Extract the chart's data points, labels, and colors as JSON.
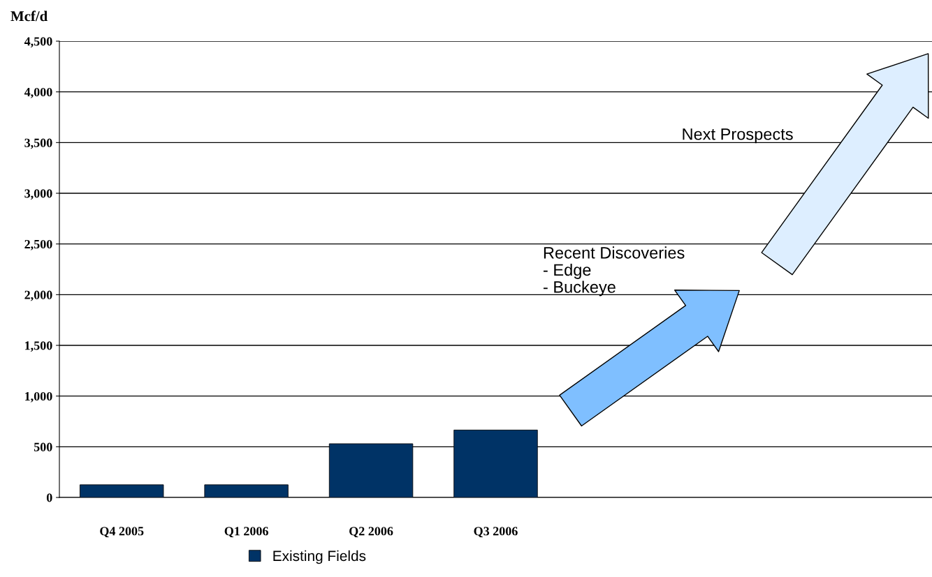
{
  "chart_data": {
    "type": "bar",
    "ylabel": "Mcf/d",
    "categories": [
      "Q4 2005",
      "Q1 2006",
      "Q2 2006",
      "Q3 2006",
      null,
      null,
      null
    ],
    "series": [
      {
        "name": "Existing Fields",
        "color": "#003366",
        "values": [
          125,
          125,
          530,
          665,
          null,
          null,
          null
        ]
      }
    ],
    "ylim": [
      0,
      4500
    ],
    "yticks": [
      {
        "value": 0,
        "label": "0"
      },
      {
        "value": 500,
        "label": "500"
      },
      {
        "value": 1000,
        "label": "1,000"
      },
      {
        "value": 1500,
        "label": "1,500"
      },
      {
        "value": 2000,
        "label": "2,000"
      },
      {
        "value": 2500,
        "label": "2,500"
      },
      {
        "value": 3000,
        "label": "3,000"
      },
      {
        "value": 3500,
        "label": "3,500"
      },
      {
        "value": 4000,
        "label": "4,000"
      },
      {
        "value": 4500,
        "label": "4,500"
      }
    ],
    "grid": "y",
    "legend": "bottom",
    "annotations": [
      "Recent Discoveries\n- Edge\n- Buckeye",
      "Next Prospects"
    ]
  }
}
